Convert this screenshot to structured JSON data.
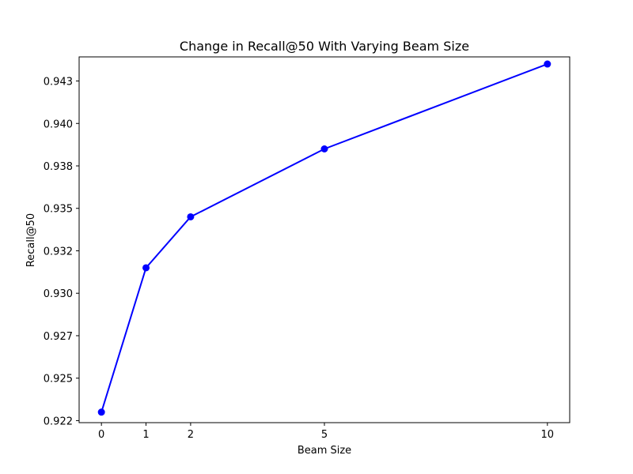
{
  "chart_data": {
    "type": "line",
    "title": "Change in Recall@50 With Varying Beam Size",
    "xlabel": "Beam Size",
    "ylabel": "Recall@50",
    "xlim": [
      -0.5,
      10.5
    ],
    "ylim": [
      0.92238,
      0.94392
    ],
    "x_ticks": [
      0,
      1,
      2,
      5,
      10
    ],
    "x_tick_labels": [
      "0",
      "1",
      "2",
      "5",
      "10"
    ],
    "y_ticks": [
      0.9225,
      0.925,
      0.9275,
      0.93,
      0.9325,
      0.935,
      0.9375,
      0.94,
      0.9425
    ],
    "y_tick_labels": [
      "0.922",
      "0.925",
      "0.927",
      "0.930",
      "0.932",
      "0.935",
      "0.938",
      "0.940",
      "0.943"
    ],
    "grid": false,
    "series": [
      {
        "color": "#0000ff",
        "marker": "circle",
        "x": [
          0,
          1,
          2,
          5,
          10
        ],
        "y": [
          0.923,
          0.9315,
          0.9345,
          0.9385,
          0.9435
        ]
      }
    ]
  }
}
